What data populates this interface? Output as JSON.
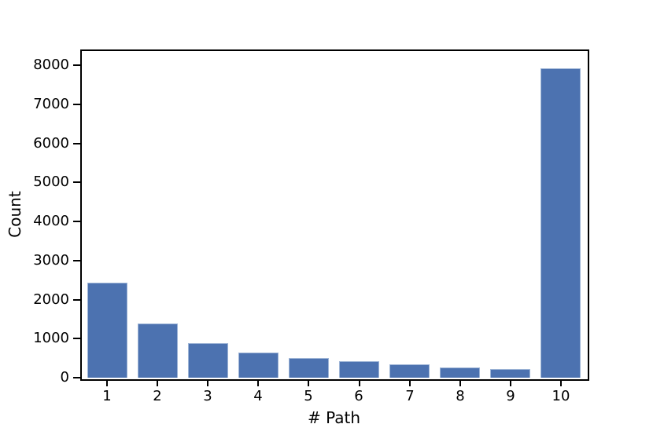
{
  "chart_data": {
    "type": "bar",
    "title": "",
    "xlabel": "# Path",
    "ylabel": "Count",
    "categories": [
      "1",
      "2",
      "3",
      "4",
      "5",
      "6",
      "7",
      "8",
      "9",
      "10"
    ],
    "values": [
      2440,
      1390,
      880,
      650,
      510,
      430,
      350,
      270,
      220,
      7930
    ],
    "ylim": [
      0,
      8370
    ],
    "yticks": [
      0,
      1000,
      2000,
      3000,
      4000,
      5000,
      6000,
      7000,
      8000
    ],
    "bar_color": "#4c72b0",
    "bar_edge_color": "#9db4d6",
    "bar_width_fraction": 0.8,
    "grid": false,
    "legend": null,
    "background_color": "#ffffff",
    "spine_color": "#000000",
    "text_color": "#000000"
  }
}
